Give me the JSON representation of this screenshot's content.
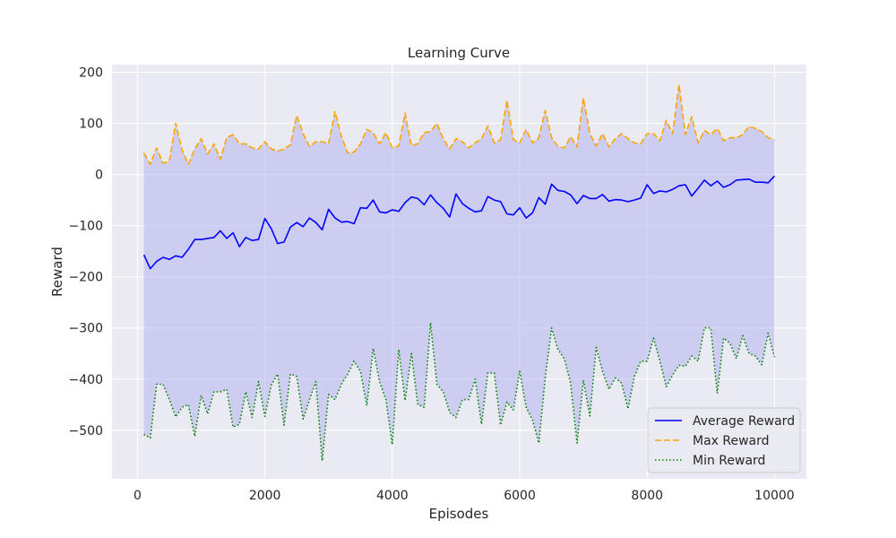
{
  "chart_data": {
    "type": "line",
    "title": "Learning Curve",
    "xlabel": "Episodes",
    "ylabel": "Reward",
    "xlim": [
      -400,
      10500
    ],
    "ylim": [
      -595,
      215
    ],
    "xticks": [
      0,
      2000,
      4000,
      6000,
      8000,
      10000
    ],
    "yticks": [
      -500,
      -400,
      -300,
      -200,
      -100,
      0,
      100,
      200
    ],
    "ytick_labels": [
      "−500",
      "−400",
      "−300",
      "−200",
      "−100",
      "0",
      "100",
      "200"
    ],
    "grid": true,
    "legend_position": "lower-right",
    "fill_between": {
      "upper": "Max Reward",
      "lower": "Min Reward",
      "color": "#b0b0f2"
    },
    "x": [
      100,
      200,
      300,
      400,
      500,
      600,
      700,
      800,
      900,
      1000,
      1100,
      1200,
      1300,
      1400,
      1500,
      1600,
      1700,
      1800,
      1900,
      2000,
      2100,
      2200,
      2300,
      2400,
      2500,
      2600,
      2700,
      2800,
      2900,
      3000,
      3100,
      3200,
      3300,
      3400,
      3500,
      3600,
      3700,
      3800,
      3900,
      4000,
      4100,
      4200,
      4300,
      4400,
      4500,
      4600,
      4700,
      4800,
      4900,
      5000,
      5100,
      5200,
      5300,
      5400,
      5500,
      5600,
      5700,
      5800,
      5900,
      6000,
      6100,
      6200,
      6300,
      6400,
      6500,
      6600,
      6700,
      6800,
      6900,
      7000,
      7100,
      7200,
      7300,
      7400,
      7500,
      7600,
      7700,
      7800,
      7900,
      8000,
      8100,
      8200,
      8300,
      8400,
      8500,
      8600,
      8700,
      8800,
      8900,
      9000,
      9100,
      9200,
      9300,
      9400,
      9500,
      9600,
      9700,
      9800,
      9900,
      10000
    ],
    "series": [
      {
        "name": "Average Reward",
        "color": "#0000ff",
        "dash": "solid",
        "values": [
          -157,
          -184,
          -170,
          -162,
          -166,
          -159,
          -162,
          -146,
          -127,
          -127,
          -125,
          -123,
          -110,
          -125,
          -114,
          -141,
          -123,
          -129,
          -127,
          -86,
          -106,
          -135,
          -132,
          -103,
          -94,
          -102,
          -85,
          -94,
          -108,
          -68,
          -85,
          -93,
          -92,
          -96,
          -65,
          -66,
          -50,
          -73,
          -75,
          -69,
          -72,
          -55,
          -44,
          -47,
          -59,
          -40,
          -55,
          -66,
          -83,
          -38,
          -57,
          -66,
          -73,
          -71,
          -43,
          -50,
          -53,
          -77,
          -79,
          -65,
          -85,
          -75,
          -45,
          -58,
          -19,
          -31,
          -33,
          -40,
          -57,
          -41,
          -47,
          -47,
          -39,
          -52,
          -49,
          -50,
          -53,
          -50,
          -46,
          -20,
          -37,
          -32,
          -34,
          -29,
          -22,
          -20,
          -42,
          -27,
          -11,
          -22,
          -13,
          -25,
          -20,
          -11,
          -10,
          -9,
          -15,
          -15,
          -16,
          -3
        ]
      },
      {
        "name": "Max Reward",
        "color": "#ffa500",
        "dash": "dashed",
        "values": [
          42,
          20,
          52,
          22,
          26,
          100,
          48,
          20,
          50,
          70,
          40,
          60,
          30,
          72,
          78,
          60,
          60,
          52,
          50,
          64,
          50,
          46,
          50,
          58,
          115,
          80,
          55,
          64,
          64,
          60,
          123,
          75,
          42,
          44,
          60,
          88,
          82,
          60,
          82,
          52,
          56,
          120,
          56,
          60,
          82,
          84,
          100,
          70,
          50,
          70,
          64,
          52,
          62,
          70,
          95,
          62,
          68,
          145,
          68,
          62,
          88,
          62,
          72,
          125,
          72,
          55,
          52,
          74,
          54,
          150,
          80,
          56,
          80,
          54,
          70,
          80,
          70,
          62,
          60,
          80,
          80,
          66,
          106,
          80,
          176,
          78,
          113,
          62,
          86,
          78,
          90,
          66,
          72,
          72,
          78,
          94,
          90,
          84,
          72,
          68
        ]
      },
      {
        "name": "Min Reward",
        "color": "#008000",
        "dash": "dotted",
        "values": [
          -508,
          -515,
          -410,
          -410,
          -440,
          -474,
          -455,
          -450,
          -512,
          -432,
          -468,
          -425,
          -425,
          -420,
          -494,
          -488,
          -425,
          -475,
          -405,
          -473,
          -412,
          -390,
          -490,
          -390,
          -395,
          -478,
          -440,
          -405,
          -560,
          -430,
          -440,
          -410,
          -390,
          -365,
          -385,
          -452,
          -340,
          -405,
          -440,
          -528,
          -342,
          -442,
          -350,
          -450,
          -455,
          -290,
          -410,
          -425,
          -465,
          -475,
          -440,
          -440,
          -400,
          -488,
          -388,
          -388,
          -490,
          -445,
          -460,
          -385,
          -455,
          -480,
          -525,
          -398,
          -300,
          -342,
          -360,
          -408,
          -525,
          -402,
          -472,
          -338,
          -385,
          -420,
          -398,
          -408,
          -458,
          -395,
          -365,
          -365,
          -320,
          -365,
          -415,
          -392,
          -373,
          -375,
          -355,
          -365,
          -300,
          -300,
          -428,
          -320,
          -330,
          -360,
          -315,
          -350,
          -355,
          -372,
          -310,
          -357
        ]
      }
    ]
  }
}
